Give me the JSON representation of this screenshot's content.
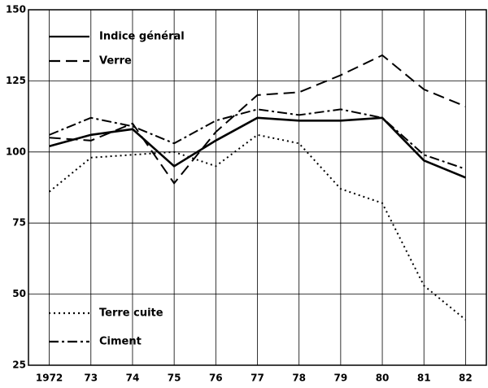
{
  "chart_data": {
    "type": "line",
    "categories": [
      "1972",
      "73",
      "74",
      "75",
      "76",
      "77",
      "78",
      "79",
      "80",
      "81",
      "82"
    ],
    "series": [
      {
        "name": "Indice général",
        "color": "#000000",
        "dash": "solid",
        "values": [
          102,
          106,
          108,
          95,
          104,
          112,
          111,
          111,
          112,
          97,
          91
        ]
      },
      {
        "name": "Verre",
        "color": "#000000",
        "dash": "dashed",
        "values": [
          105,
          104,
          110,
          89,
          107,
          120,
          121,
          127,
          134,
          122,
          116
        ]
      },
      {
        "name": "Terre cuite",
        "color": "#000000",
        "dash": "dotted",
        "values": [
          86,
          98,
          99,
          100,
          95,
          106,
          103,
          87,
          82,
          53,
          41
        ]
      },
      {
        "name": "Ciment",
        "color": "#000000",
        "dash": "dashdot",
        "values": [
          106,
          112,
          109,
          103,
          111,
          115,
          113,
          115,
          112,
          99,
          94
        ]
      }
    ],
    "ylim": [
      25,
      150
    ],
    "yticks": [
      25,
      50,
      75,
      100,
      125,
      150
    ],
    "grid": true
  }
}
